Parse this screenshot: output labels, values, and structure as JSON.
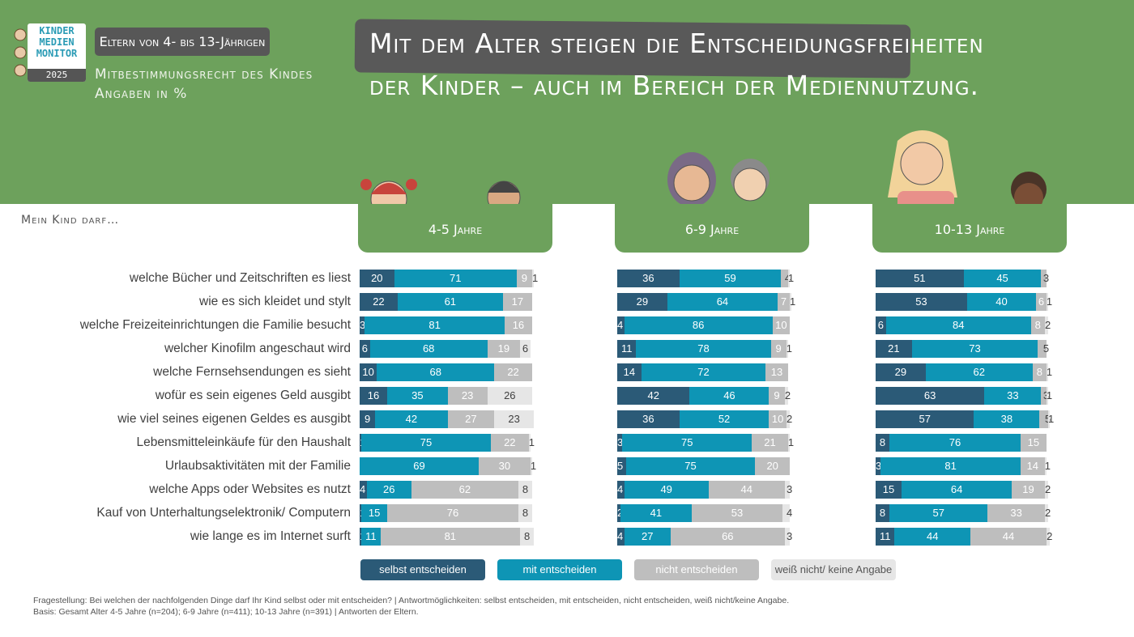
{
  "logo": {
    "line1": "KINDER",
    "line2": "MEDIEN",
    "line3": "MONITOR",
    "year": "2025"
  },
  "header": {
    "badge": "Eltern von 4- bis 13-Jährigen",
    "caption_line1": "Mitbestimmungsrecht des Kindes",
    "caption_line2": "Angaben in %",
    "title_line1": "Mit dem Alter steigen die Entscheidungsfreiheiten",
    "title_line2": "der Kinder – auch im Bereich der Mediennutzung."
  },
  "question_label": "Mein Kind darf…",
  "colors": {
    "band": "#6da15c",
    "selbst": "#2b5a77",
    "mit": "#0e95b5",
    "nicht": "#bebebe",
    "weiss": "#e6e6e6"
  },
  "chart_data": {
    "type": "bar",
    "orientation": "horizontal-stacked",
    "unit": "%",
    "categories": [
      "welche Bücher und Zeitschriften es liest",
      "wie es sich kleidet und stylt",
      "welche Freizeiteinrichtungen die Familie besucht",
      "welcher Kinofilm angeschaut wird",
      "welche Fernsehsendungen es sieht",
      "wofür es sein eigenes Geld ausgibt",
      "wie viel seines eigenen Geldes es ausgibt",
      "Lebensmitteleinkäufe für den Haushalt",
      "Urlaubsaktivitäten mit der Familie",
      "welche Apps oder Websites es nutzt",
      "Kauf von Unterhaltungselektronik/ Computern",
      "wie lange es im Internet surft"
    ],
    "legend": [
      "selbst entscheiden",
      "mit entscheiden",
      "nicht entscheiden",
      "weiß nicht/ keine Angabe"
    ],
    "groups": [
      {
        "label": "4-5 Jahre",
        "rows": [
          [
            20,
            71,
            9,
            1
          ],
          [
            22,
            61,
            17,
            null
          ],
          [
            3,
            81,
            16,
            null
          ],
          [
            6,
            68,
            19,
            6
          ],
          [
            10,
            68,
            22,
            null
          ],
          [
            16,
            35,
            23,
            26
          ],
          [
            9,
            42,
            27,
            23
          ],
          [
            1,
            75,
            22,
            1
          ],
          [
            0,
            69,
            30,
            1
          ],
          [
            4,
            26,
            62,
            8
          ],
          [
            1,
            15,
            76,
            8
          ],
          [
            1,
            11,
            81,
            8
          ]
        ]
      },
      {
        "label": "6-9 Jahre",
        "rows": [
          [
            36,
            59,
            4,
            1
          ],
          [
            29,
            64,
            7,
            1
          ],
          [
            4,
            86,
            10,
            null
          ],
          [
            11,
            78,
            9,
            1
          ],
          [
            14,
            72,
            13,
            null
          ],
          [
            42,
            46,
            9,
            2
          ],
          [
            36,
            52,
            10,
            2
          ],
          [
            3,
            75,
            21,
            1
          ],
          [
            5,
            75,
            20,
            null
          ],
          [
            4,
            49,
            44,
            3
          ],
          [
            2,
            41,
            53,
            4
          ],
          [
            4,
            27,
            66,
            3
          ]
        ]
      },
      {
        "label": "10-13 Jahre",
        "rows": [
          [
            51,
            45,
            3,
            null
          ],
          [
            53,
            40,
            6,
            1
          ],
          [
            6,
            84,
            8,
            2
          ],
          [
            21,
            73,
            5,
            null
          ],
          [
            29,
            62,
            8,
            1
          ],
          [
            63,
            33,
            3,
            1
          ],
          [
            57,
            38,
            5,
            1
          ],
          [
            8,
            76,
            15,
            null
          ],
          [
            3,
            81,
            14,
            1
          ],
          [
            15,
            64,
            19,
            2
          ],
          [
            8,
            57,
            33,
            2
          ],
          [
            11,
            44,
            44,
            2
          ]
        ]
      }
    ]
  },
  "footnote": {
    "line1": "Fragestellung: Bei welchen der nachfolgenden Dinge darf Ihr Kind selbst oder mit entscheiden? | Antwortmöglichkeiten: selbst entscheiden, mit entscheiden, nicht entscheiden, weiß nicht/keine Angabe.",
    "line2": "Basis: Gesamt Alter 4-5 Jahre (n=204); 6-9 Jahre (n=411); 10-13 Jahre (n=391) | Antworten der Eltern."
  }
}
